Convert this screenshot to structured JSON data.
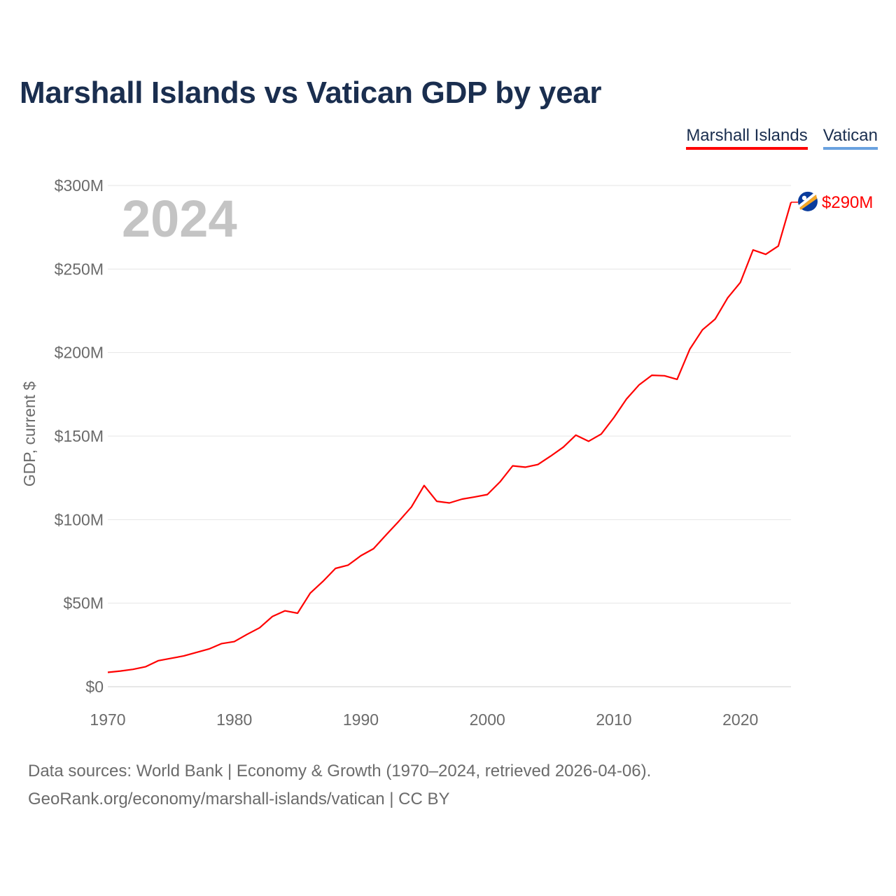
{
  "title": "Marshall Islands vs Vatican GDP by year",
  "legend": {
    "items": [
      {
        "label": "Marshall Islands",
        "color": "#ff0000"
      },
      {
        "label": "Vatican",
        "color": "#6aa2e0"
      }
    ]
  },
  "year_label": "2024",
  "end_label": "$290M",
  "flag_icon": "marshall-islands-flag-icon",
  "source": {
    "line1": "Data sources: World Bank | Economy & Growth (1970–2024, retrieved 2026-04-06).",
    "line2": "GeoRank.org/economy/marshall-islands/vatican | CC BY"
  },
  "chart_data": {
    "type": "line",
    "title": "Marshall Islands vs Vatican GDP by year",
    "xlabel": "",
    "ylabel": "GDP, current $",
    "xlim": [
      1970,
      2024
    ],
    "ylim": [
      0,
      300
    ],
    "y_unit": "million USD",
    "x_ticks": [
      1970,
      1980,
      1990,
      2000,
      2010,
      2020
    ],
    "x_tick_labels": [
      "1970",
      "1980",
      "1990",
      "2000",
      "2010",
      "2020"
    ],
    "y_ticks": [
      0,
      50,
      100,
      150,
      200,
      250,
      300
    ],
    "y_tick_labels": [
      "$0",
      "$50M",
      "$100M",
      "$150M",
      "$200M",
      "$250M",
      "$300M"
    ],
    "grid": true,
    "legend_position": "top-right",
    "series": [
      {
        "name": "Marshall Islands",
        "color": "#ff0000",
        "x": [
          1970,
          1971,
          1972,
          1973,
          1974,
          1975,
          1976,
          1977,
          1978,
          1979,
          1980,
          1981,
          1982,
          1983,
          1984,
          1985,
          1986,
          1987,
          1988,
          1989,
          1990,
          1991,
          1992,
          1993,
          1994,
          1995,
          1996,
          1997,
          1998,
          1999,
          2000,
          2001,
          2002,
          2003,
          2004,
          2005,
          2006,
          2007,
          2008,
          2009,
          2010,
          2011,
          2012,
          2013,
          2014,
          2015,
          2016,
          2017,
          2018,
          2019,
          2020,
          2021,
          2022,
          2023,
          2024
        ],
        "values": [
          8.6,
          9.4,
          10.4,
          12.0,
          15.6,
          17.0,
          18.4,
          20.5,
          22.6,
          25.8,
          27.0,
          31.3,
          35.3,
          42.0,
          45.4,
          44.0,
          56.0,
          63.0,
          70.8,
          72.8,
          78.4,
          82.6,
          90.9,
          99.0,
          107.6,
          120.4,
          111.0,
          110.0,
          112.3,
          113.6,
          115.0,
          122.6,
          132.2,
          131.4,
          133.0,
          138.0,
          143.4,
          150.6,
          146.9,
          151.2,
          161.1,
          172.2,
          180.7,
          186.4,
          186.1,
          184.0,
          202.0,
          213.6,
          220.0,
          232.8,
          242.0,
          261.4,
          258.8,
          263.8,
          290.0
        ]
      },
      {
        "name": "Vatican",
        "color": "#6aa2e0",
        "x": [],
        "values": []
      }
    ]
  }
}
